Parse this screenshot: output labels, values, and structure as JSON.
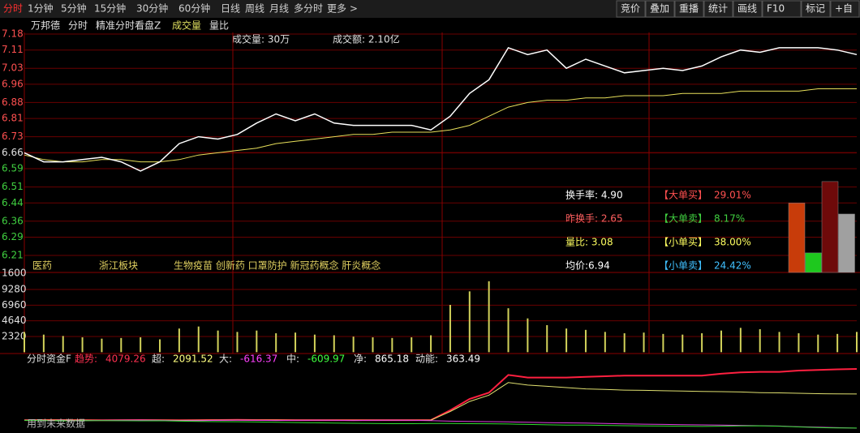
{
  "toolbar": {
    "tabs": [
      "分时",
      "1分钟",
      "5分钟",
      "15分钟",
      "30分钟",
      "60分钟",
      "日线",
      "周线",
      "月线",
      "多分时",
      "更多 >"
    ],
    "buttons": [
      "竞价",
      "叠加",
      "重播",
      "统计",
      "画线",
      "F10",
      "标记",
      "+自"
    ]
  },
  "header": {
    "items": [
      "万邦德",
      "分时",
      "精准分时看盘Z",
      "成交量",
      "量比"
    ],
    "volume": "成交量: 30万",
    "amount": "成交额: 2.10亿"
  },
  "price": {
    "yticks": [
      7.18,
      7.11,
      7.03,
      6.96,
      6.88,
      6.81,
      6.73,
      6.66,
      6.59,
      6.51,
      6.44,
      6.36,
      6.29,
      6.21
    ],
    "prev_close": 6.66,
    "line_color": "#ffffff",
    "avg_color": "#e8e05a",
    "values": [
      6.66,
      6.62,
      6.62,
      6.63,
      6.64,
      6.62,
      6.58,
      6.62,
      6.7,
      6.73,
      6.72,
      6.74,
      6.79,
      6.83,
      6.8,
      6.83,
      6.79,
      6.78,
      6.78,
      6.78,
      6.78,
      6.76,
      6.82,
      6.92,
      6.98,
      7.12,
      7.09,
      7.11,
      7.03,
      7.07,
      7.04,
      7.01,
      7.02,
      7.03,
      7.02,
      7.04,
      7.08,
      7.11,
      7.1,
      7.12,
      7.12,
      7.12,
      7.11,
      7.09
    ],
    "avg": [
      6.65,
      6.63,
      6.62,
      6.62,
      6.63,
      6.63,
      6.62,
      6.62,
      6.63,
      6.65,
      6.66,
      6.67,
      6.68,
      6.7,
      6.71,
      6.72,
      6.73,
      6.74,
      6.74,
      6.75,
      6.75,
      6.75,
      6.76,
      6.78,
      6.82,
      6.86,
      6.88,
      6.89,
      6.89,
      6.9,
      6.9,
      6.91,
      6.91,
      6.91,
      6.92,
      6.92,
      6.92,
      6.93,
      6.93,
      6.93,
      6.93,
      6.94,
      6.94,
      6.94
    ]
  },
  "sectors": [
    "医药",
    "浙江板块",
    "生物疫苗 创新药 口罩防护 新冠药概念 肝炎概念"
  ],
  "stats": [
    "换手率: 4.90",
    "昨换手: 2.65",
    "量比: 3.08",
    "均价:6.94"
  ],
  "flows": [
    {
      "name": "【大单买】",
      "value": 29.01,
      "label": "29.01%",
      "color": "#c83c0a"
    },
    {
      "name": "【大单卖】",
      "value": 8.17,
      "label": "8.17%",
      "color": "#1ec81e"
    },
    {
      "name": "【小单买】",
      "value": 38.0,
      "label": "38.00%",
      "color": "#6e0a0a"
    },
    {
      "name": "【小单卖】",
      "value": 24.42,
      "label": "24.42%",
      "color": "#a0a0a0"
    }
  ],
  "volume": {
    "top_label": "1600",
    "yticks": [
      9280,
      6960,
      4640,
      2320
    ],
    "color": "#d2d25a",
    "values": [
      3000,
      2600,
      2400,
      2200,
      2000,
      2100,
      2200,
      1900,
      3500,
      3800,
      3200,
      3000,
      3200,
      2800,
      2900,
      2600,
      2500,
      2300,
      2200,
      2100,
      2200,
      2500,
      7000,
      9000,
      10500,
      6500,
      5000,
      4000,
      3500,
      3300,
      3000,
      2800,
      2900,
      2700,
      2600,
      2800,
      3200,
      3600,
      3400,
      3000,
      2800,
      2600,
      2700,
      3000
    ]
  },
  "fund": {
    "title": "分时资金F",
    "labels": [
      {
        "name": "趋势:",
        "value": "4079.26",
        "color": "#ff3050"
      },
      {
        "name": "超:",
        "value": "2091.52",
        "color": "#ffff80"
      },
      {
        "name": "大:",
        "value": "-616.37",
        "color": "#ff40ff"
      },
      {
        "name": "中:",
        "value": "-609.97",
        "color": "#40ff40"
      },
      {
        "name": "净:",
        "value": "865.18",
        "color": "#ffffff"
      },
      {
        "name": "动能:",
        "value": "363.49",
        "color": "#ffffff"
      }
    ],
    "series": [
      {
        "color": "#ff2040",
        "values": [
          20,
          30,
          30,
          20,
          10,
          20,
          30,
          20,
          10,
          20,
          30,
          40,
          30,
          30,
          20,
          20,
          20,
          20,
          20,
          20,
          20,
          30,
          800,
          1700,
          2200,
          3600,
          3400,
          3400,
          3400,
          3450,
          3500,
          3550,
          3550,
          3550,
          3550,
          3550,
          3700,
          3800,
          3850,
          3850,
          3950,
          4000,
          4050,
          4079
        ]
      },
      {
        "color": "#e0e070",
        "values": [
          10,
          20,
          20,
          10,
          0,
          10,
          20,
          10,
          0,
          10,
          20,
          30,
          20,
          20,
          10,
          10,
          10,
          10,
          10,
          10,
          10,
          20,
          700,
          1500,
          2000,
          3000,
          2800,
          2700,
          2600,
          2500,
          2450,
          2400,
          2380,
          2350,
          2320,
          2300,
          2280,
          2250,
          2200,
          2180,
          2150,
          2120,
          2100,
          2091
        ]
      },
      {
        "color": "#e040e0",
        "values": [
          0,
          -20,
          -30,
          -20,
          0,
          10,
          20,
          0,
          -30,
          -20,
          0,
          10,
          0,
          -10,
          0,
          10,
          0,
          -10,
          0,
          10,
          0,
          -20,
          -60,
          -80,
          -100,
          -120,
          -150,
          -180,
          -200,
          -220,
          -250,
          -280,
          -300,
          -320,
          -340,
          -360,
          -380,
          -400,
          -420,
          -450,
          -500,
          -540,
          -580,
          -616
        ]
      },
      {
        "color": "#30e030",
        "values": [
          0,
          -20,
          -40,
          -30,
          -20,
          -30,
          -40,
          -30,
          -60,
          -80,
          -100,
          -110,
          -130,
          -150,
          -170,
          -190,
          -210,
          -230,
          -250,
          -260,
          -260,
          -250,
          -250,
          -260,
          -270,
          -290,
          -320,
          -350,
          -370,
          -380,
          -400,
          -420,
          -440,
          -450,
          -460,
          -480,
          -460,
          -440,
          -430,
          -460,
          -520,
          -570,
          -600,
          -610
        ]
      }
    ],
    "note": "用到未来数据"
  }
}
